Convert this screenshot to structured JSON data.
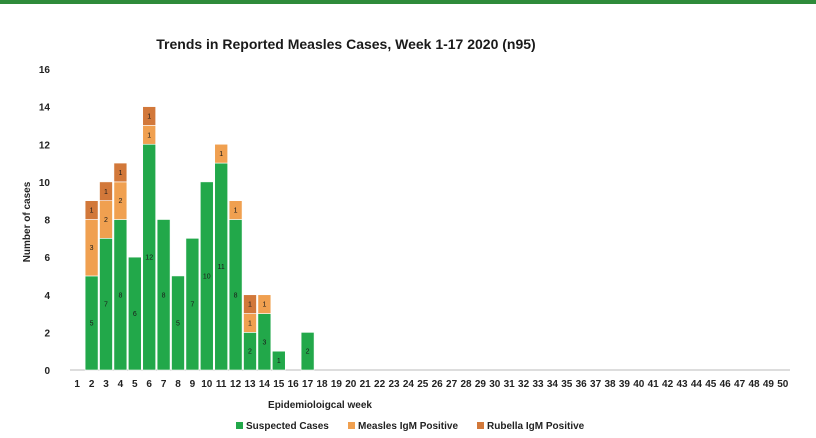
{
  "chart_data": {
    "type": "bar",
    "stacked": true,
    "title": "Trends in Reported Measles Cases, Week 1-17 2020 (n95)",
    "xlabel": "Epidemioloigcal week",
    "ylabel": "Number of cases",
    "ylim": [
      0,
      16
    ],
    "yticks": [
      0,
      2,
      4,
      6,
      8,
      10,
      12,
      14,
      16
    ],
    "categories": [
      "1",
      "2",
      "3",
      "4",
      "5",
      "6",
      "7",
      "8",
      "9",
      "10",
      "11",
      "12",
      "13",
      "14",
      "15",
      "16",
      "17",
      "18",
      "19",
      "20",
      "21",
      "22",
      "23",
      "24",
      "25",
      "26",
      "27",
      "28",
      "29",
      "30",
      "31",
      "32",
      "33",
      "34",
      "35",
      "36",
      "37",
      "38",
      "39",
      "40",
      "41",
      "42",
      "43",
      "44",
      "45",
      "46",
      "47",
      "48",
      "49",
      "50"
    ],
    "series": [
      {
        "name": "Suspected Cases",
        "color": "#22a84a",
        "values": [
          0,
          5,
          7,
          8,
          6,
          12,
          8,
          5,
          7,
          10,
          11,
          8,
          2,
          3,
          1,
          0,
          2,
          0,
          0,
          0,
          0,
          0,
          0,
          0,
          0,
          0,
          0,
          0,
          0,
          0,
          0,
          0,
          0,
          0,
          0,
          0,
          0,
          0,
          0,
          0,
          0,
          0,
          0,
          0,
          0,
          0,
          0,
          0,
          0,
          0
        ]
      },
      {
        "name": "Measles IgM Positive",
        "color": "#f0a050",
        "values": [
          0,
          3,
          2,
          2,
          0,
          1,
          0,
          0,
          0,
          0,
          1,
          1,
          1,
          1,
          0,
          0,
          0,
          0,
          0,
          0,
          0,
          0,
          0,
          0,
          0,
          0,
          0,
          0,
          0,
          0,
          0,
          0,
          0,
          0,
          0,
          0,
          0,
          0,
          0,
          0,
          0,
          0,
          0,
          0,
          0,
          0,
          0,
          0,
          0,
          0
        ]
      },
      {
        "name": "Rubella IgM Positive",
        "color": "#d2783a",
        "values": [
          0,
          1,
          1,
          1,
          0,
          1,
          0,
          0,
          0,
          0,
          0,
          0,
          1,
          0,
          0,
          0,
          0,
          0,
          0,
          0,
          0,
          0,
          0,
          0,
          0,
          0,
          0,
          0,
          0,
          0,
          0,
          0,
          0,
          0,
          0,
          0,
          0,
          0,
          0,
          0,
          0,
          0,
          0,
          0,
          0,
          0,
          0,
          0,
          0,
          0
        ]
      }
    ],
    "data_labels": true,
    "grid": false,
    "legend_position": "bottom"
  }
}
